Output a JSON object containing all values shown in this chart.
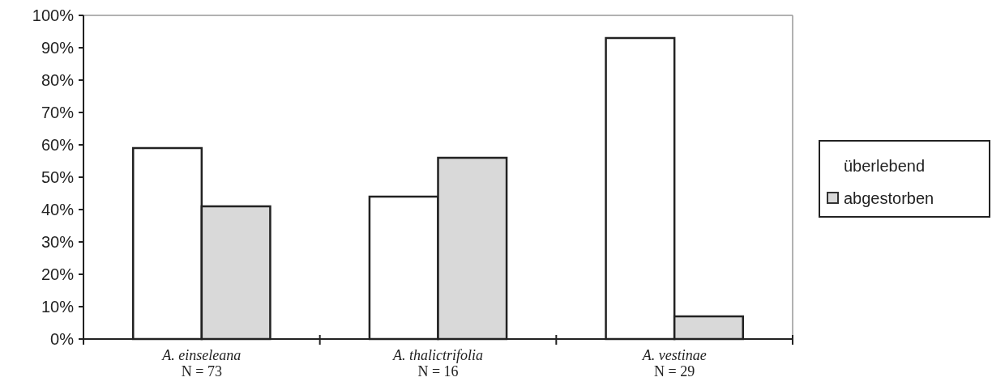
{
  "chart_data": {
    "type": "bar",
    "categories": [
      "A. einseleana\nN = 73",
      "A. thalictrifolia\nN = 16",
      "A. vestinae\nN = 29"
    ],
    "series": [
      {
        "name": "überlebend",
        "color": "#ffffff",
        "values": [
          59,
          44,
          93
        ]
      },
      {
        "name": "abgestorben",
        "color": "#d9d9d9",
        "values": [
          41,
          56,
          7
        ]
      }
    ],
    "ylim": [
      0,
      100
    ],
    "yticks": [
      {
        "value": 0,
        "label": "0%"
      },
      {
        "value": 10,
        "label": "10%"
      },
      {
        "value": 20,
        "label": "20%"
      },
      {
        "value": 30,
        "label": "30%"
      },
      {
        "value": 40,
        "label": "40%"
      },
      {
        "value": 50,
        "label": "50%"
      },
      {
        "value": 60,
        "label": "60%"
      },
      {
        "value": 70,
        "label": "70%"
      },
      {
        "value": 80,
        "label": "80%"
      },
      {
        "value": 90,
        "label": "90%"
      },
      {
        "value": 100,
        "label": "100%"
      }
    ],
    "grid": false,
    "legend": "right"
  }
}
